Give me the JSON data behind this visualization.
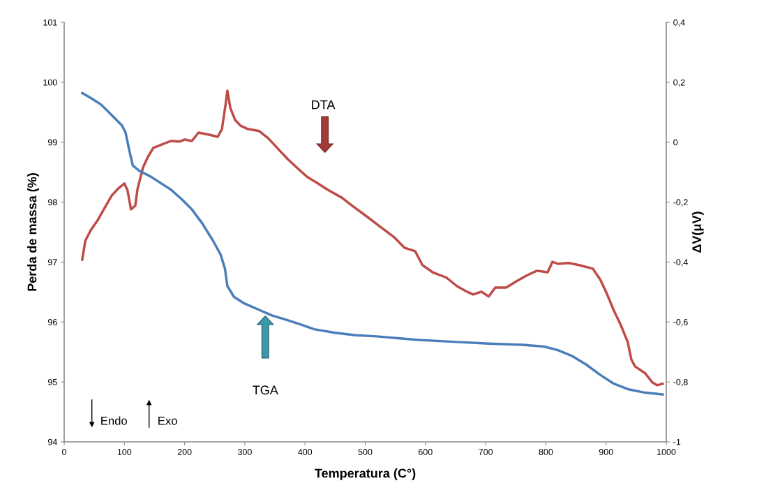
{
  "chart_data": {
    "type": "line",
    "xlabel": "Temperatura (C°)",
    "ylabel": "Perda de massa (%)",
    "y2label": "ΔV(μV)",
    "xlim": [
      0,
      1000
    ],
    "xticks": [
      0,
      100,
      200,
      300,
      400,
      500,
      600,
      700,
      800,
      900,
      1000
    ],
    "ylim": [
      94,
      101
    ],
    "yticks": [
      94,
      95,
      96,
      97,
      98,
      99,
      100,
      101
    ],
    "y2lim": [
      -1,
      0.4
    ],
    "y2ticks": [
      {
        "value": -1,
        "label": "-1"
      },
      {
        "value": -0.8,
        "label": "-0,8"
      },
      {
        "value": -0.6,
        "label": "-0,6"
      },
      {
        "value": -0.4,
        "label": "-0,4"
      },
      {
        "value": -0.2,
        "label": "-0,2"
      },
      {
        "value": 0,
        "label": "0"
      },
      {
        "value": 0.2,
        "label": "0,2"
      },
      {
        "value": 0.4,
        "label": "0,4"
      }
    ],
    "grid": false,
    "marker": "none",
    "line_style": "solid",
    "series": [
      {
        "color": "#4a7ebb",
        "x": [
          30,
          44,
          61,
          79,
          96,
          102,
          108,
          114,
          125,
          143,
          160,
          177,
          195,
          212,
          229,
          247,
          260,
          267,
          271,
          282,
          299,
          322,
          345,
          368,
          392,
          415,
          450,
          484,
          519,
          554,
          589,
          646,
          705,
          762,
          797,
          820,
          844,
          867,
          890,
          913,
          936,
          965,
          994
        ],
        "values": [
          99.82,
          99.74,
          99.63,
          99.45,
          99.28,
          99.16,
          98.87,
          98.61,
          98.52,
          98.43,
          98.32,
          98.21,
          98.05,
          97.88,
          97.65,
          97.36,
          97.12,
          96.89,
          96.6,
          96.42,
          96.31,
          96.21,
          96.11,
          96.04,
          95.96,
          95.88,
          95.82,
          95.78,
          95.76,
          95.73,
          95.7,
          95.67,
          95.64,
          95.62,
          95.59,
          95.53,
          95.43,
          95.29,
          95.12,
          94.97,
          94.88,
          94.82,
          94.79
        ]
      },
      {
        "color": "#be4b48",
        "axis": "y2",
        "x": [
          30,
          35,
          44,
          56,
          67,
          79,
          90,
          100,
          105,
          111,
          118,
          122,
          131,
          139,
          148,
          162,
          177,
          192,
          200,
          212,
          223,
          241,
          255,
          262,
          268,
          271,
          276,
          284,
          293,
          305,
          324,
          339,
          357,
          371,
          386,
          403,
          420,
          438,
          461,
          479,
          502,
          525,
          548,
          565,
          583,
          595,
          612,
          635,
          652,
          669,
          679,
          693,
          705,
          716,
          734,
          751,
          768,
          785,
          803,
          811,
          820,
          838,
          855,
          878,
          890,
          901,
          913,
          924,
          936,
          942,
          948,
          965,
          977,
          985,
          994
        ],
        "values": [
          -0.392,
          -0.329,
          -0.294,
          -0.259,
          -0.22,
          -0.178,
          -0.154,
          -0.138,
          -0.159,
          -0.224,
          -0.212,
          -0.154,
          -0.084,
          -0.049,
          -0.019,
          -0.008,
          0.004,
          0.002,
          0.009,
          0.004,
          0.032,
          0.025,
          0.018,
          0.044,
          0.125,
          0.172,
          0.114,
          0.074,
          0.055,
          0.044,
          0.037,
          0.013,
          -0.026,
          -0.056,
          -0.084,
          -0.115,
          -0.136,
          -0.159,
          -0.185,
          -0.213,
          -0.247,
          -0.282,
          -0.317,
          -0.352,
          -0.364,
          -0.41,
          -0.434,
          -0.452,
          -0.48,
          -0.499,
          -0.508,
          -0.499,
          -0.515,
          -0.485,
          -0.485,
          -0.464,
          -0.445,
          -0.429,
          -0.434,
          -0.399,
          -0.406,
          -0.403,
          -0.41,
          -0.422,
          -0.457,
          -0.504,
          -0.562,
          -0.608,
          -0.667,
          -0.725,
          -0.748,
          -0.771,
          -0.802,
          -0.811,
          -0.806
        ]
      }
    ],
    "annotations": [
      "DTA",
      "TGA",
      "Endo",
      "Exo"
    ]
  }
}
